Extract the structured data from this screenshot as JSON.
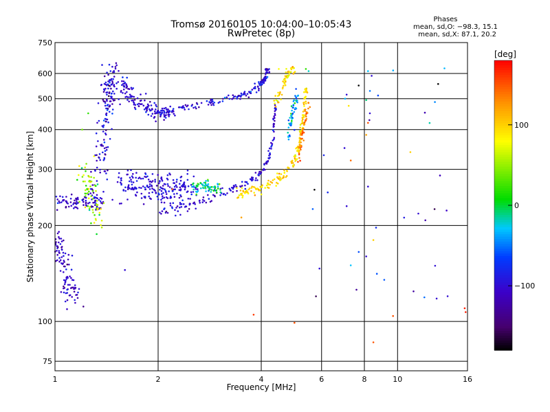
{
  "chart_data": {
    "type": "scatter",
    "title_line1": "Tromsø 20160105 10:04:00–10:05:43",
    "title_line2": "RwPretec (8p)",
    "stats": {
      "heading": "Phases",
      "line_o": "mean, sd,O: −98.3, 15.1",
      "line_x": "mean, sd,X: 87.1, 20.2"
    },
    "xlabel": "Frequency [MHz]",
    "ylabel": "Stationary phase Virtual Height [km]",
    "x_scale": "log",
    "y_scale": "log",
    "xlim": [
      1,
      16
    ],
    "ylim": [
      70,
      750
    ],
    "x_ticks": [
      {
        "value": 1,
        "label": "1"
      },
      {
        "value": 2,
        "label": "2"
      },
      {
        "value": 4,
        "label": "4"
      },
      {
        "value": 6,
        "label": "6"
      },
      {
        "value": 8,
        "label": "8"
      },
      {
        "value": 10,
        "label": "10"
      },
      {
        "value": 16,
        "label": "16"
      }
    ],
    "y_ticks": [
      {
        "value": 75,
        "label": "75"
      },
      {
        "value": 100,
        "label": "100"
      },
      {
        "value": 200,
        "label": "200"
      },
      {
        "value": 300,
        "label": "300"
      },
      {
        "value": 400,
        "label": "400"
      },
      {
        "value": 500,
        "label": "500"
      },
      {
        "value": 600,
        "label": "600"
      },
      {
        "value": 750,
        "label": "750"
      }
    ],
    "grid": true,
    "colorbar": {
      "label": "[deg]",
      "range": [
        -180,
        180
      ],
      "ticks": [
        {
          "value": 100,
          "label": "100"
        },
        {
          "value": 0,
          "label": "0"
        },
        {
          "value": -100,
          "label": "−100"
        }
      ]
    },
    "series": [
      {
        "kind": "cluster",
        "count": 90,
        "points": [
          [
            1.0,
            235
          ],
          [
            1.1,
            236
          ],
          [
            1.2,
            238
          ],
          [
            1.3,
            236
          ],
          [
            1.38,
            238
          ]
        ],
        "spread": [
          0.05,
          14
        ],
        "phase": -105,
        "phase_sd": 15
      },
      {
        "kind": "cluster",
        "count": 110,
        "points": [
          [
            1.0,
            185
          ],
          [
            1.03,
            165
          ],
          [
            1.06,
            145
          ],
          [
            1.1,
            125
          ],
          [
            1.17,
            118
          ]
        ],
        "spread": [
          0.06,
          12
        ],
        "phase": -110,
        "phase_sd": 15
      },
      {
        "kind": "cluster",
        "count": 160,
        "points": [
          [
            1.3,
            260
          ],
          [
            1.36,
            320
          ],
          [
            1.4,
            400
          ],
          [
            1.43,
            480
          ],
          [
            1.46,
            560
          ],
          [
            1.48,
            620
          ]
        ],
        "spread": [
          0.07,
          40
        ],
        "phase": -100,
        "phase_sd": 20
      },
      {
        "kind": "cluster",
        "count": 220,
        "points": [
          [
            1.5,
            270
          ],
          [
            1.7,
            268
          ],
          [
            1.9,
            265
          ],
          [
            2.1,
            262
          ],
          [
            2.3,
            262
          ],
          [
            2.5,
            262
          ]
        ],
        "spread": [
          0.15,
          30
        ],
        "phase": -98,
        "phase_sd": 12
      },
      {
        "kind": "cluster",
        "count": 130,
        "points": [
          [
            1.55,
            560
          ],
          [
            1.65,
            510
          ],
          [
            1.8,
            470
          ],
          [
            2.0,
            450
          ],
          [
            2.2,
            445
          ]
        ],
        "spread": [
          0.08,
          25
        ],
        "phase": -100,
        "phase_sd": 14
      },
      {
        "kind": "cluster",
        "count": 160,
        "points": [
          [
            2.0,
            450
          ],
          [
            2.3,
            465
          ],
          [
            2.7,
            480
          ],
          [
            3.1,
            495
          ],
          [
            3.5,
            510
          ],
          [
            3.9,
            540
          ],
          [
            4.1,
            580
          ],
          [
            4.2,
            620
          ]
        ],
        "spread": [
          0.06,
          14
        ],
        "phase": -95,
        "phase_sd": 18
      },
      {
        "kind": "cluster",
        "count": 150,
        "points": [
          [
            1.9,
            218
          ],
          [
            2.3,
            228
          ],
          [
            2.7,
            240
          ],
          [
            3.1,
            255
          ],
          [
            3.5,
            268
          ],
          [
            3.9,
            285
          ],
          [
            4.2,
            320
          ],
          [
            4.35,
            400
          ],
          [
            4.4,
            480
          ]
        ],
        "spread": [
          0.05,
          8
        ],
        "phase": -100,
        "phase_sd": 15
      },
      {
        "kind": "cluster",
        "count": 70,
        "points": [
          [
            2.55,
            262
          ],
          [
            2.7,
            270
          ],
          [
            2.85,
            258
          ],
          [
            3.0,
            265
          ]
        ],
        "spread": [
          0.1,
          10
        ],
        "phase": -10,
        "phase_sd": 25
      },
      {
        "kind": "cluster",
        "count": 180,
        "points": [
          [
            3.4,
            250
          ],
          [
            3.8,
            258
          ],
          [
            4.2,
            268
          ],
          [
            4.6,
            285
          ],
          [
            4.9,
            305
          ],
          [
            5.1,
            340
          ],
          [
            5.25,
            400
          ],
          [
            5.35,
            470
          ],
          [
            5.4,
            540
          ]
        ],
        "spread": [
          0.06,
          10
        ],
        "phase": 95,
        "phase_sd": 15
      },
      {
        "kind": "cluster",
        "count": 60,
        "points": [
          [
            4.4,
            470
          ],
          [
            4.6,
            540
          ],
          [
            4.8,
            600
          ],
          [
            5.0,
            620
          ]
        ],
        "spread": [
          0.08,
          18
        ],
        "phase": 90,
        "phase_sd": 20
      },
      {
        "kind": "cluster",
        "count": 50,
        "points": [
          [
            4.8,
            380
          ],
          [
            4.9,
            430
          ],
          [
            5.0,
            480
          ],
          [
            5.1,
            520
          ]
        ],
        "spread": [
          0.06,
          20
        ],
        "phase": -40,
        "phase_sd": 20
      },
      {
        "kind": "cluster",
        "count": 50,
        "points": [
          [
            5.15,
            330
          ],
          [
            5.3,
            390
          ],
          [
            5.4,
            440
          ],
          [
            5.5,
            500
          ]
        ],
        "spread": [
          0.06,
          15
        ],
        "phase": 140,
        "phase_sd": 15
      },
      {
        "kind": "cluster",
        "count": 70,
        "points": [
          [
            1.2,
            300
          ],
          [
            1.25,
            260
          ],
          [
            1.3,
            230
          ],
          [
            1.35,
            205
          ]
        ],
        "spread": [
          0.07,
          25
        ],
        "phase": 50,
        "phase_sd": 30
      },
      {
        "kind": "scatter",
        "count": 30,
        "xrange": [
          5.6,
          14
        ],
        "yrange": [
          110,
          640
        ],
        "phase": -90,
        "phase_sd": 40
      }
    ],
    "isolated_points": [
      [
        5.4,
        620,
        20
      ],
      [
        5.5,
        610,
        -20
      ],
      [
        4.5,
        620,
        80
      ],
      [
        7.1,
        515,
        -100
      ],
      [
        7.2,
        475,
        90
      ],
      [
        7.0,
        350,
        -100
      ],
      [
        7.3,
        320,
        140
      ],
      [
        7.1,
        230,
        -100
      ],
      [
        7.3,
        150,
        -30
      ],
      [
        8.2,
        610,
        -30
      ],
      [
        8.4,
        590,
        -100
      ],
      [
        8.1,
        495,
        -10
      ],
      [
        8.3,
        450,
        -100
      ],
      [
        8.2,
        420,
        150
      ],
      [
        8.1,
        385,
        120
      ],
      [
        8.2,
        265,
        -100
      ],
      [
        8.1,
        160,
        -100
      ],
      [
        8.5,
        180,
        100
      ],
      [
        8.5,
        86,
        150
      ],
      [
        9.7,
        104,
        150
      ],
      [
        10.9,
        340,
        100
      ],
      [
        11.5,
        218,
        -100
      ],
      [
        13.0,
        118,
        -100
      ],
      [
        14.0,
        120,
        -100
      ],
      [
        15.7,
        110,
        170
      ],
      [
        15.8,
        107,
        170
      ],
      [
        5.0,
        399,
        -80
      ],
      [
        3.8,
        105,
        160
      ],
      [
        5.0,
        99,
        150
      ],
      [
        2.2,
        260,
        140
      ],
      [
        3.5,
        212,
        120
      ],
      [
        1.6,
        145,
        -100
      ],
      [
        1.25,
        450,
        20
      ],
      [
        1.2,
        400,
        40
      ],
      [
        1.3,
        330,
        80
      ]
    ]
  }
}
